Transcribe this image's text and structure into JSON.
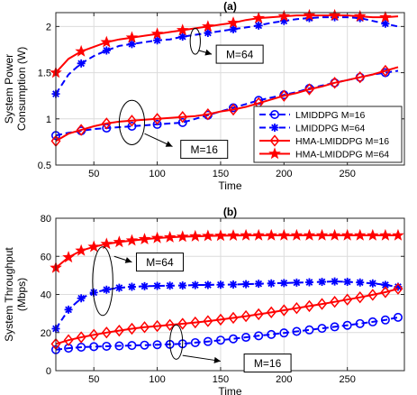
{
  "chart_data": [
    {
      "type": "line",
      "title": "(a)",
      "xlabel": "Time",
      "ylabel_lines": [
        "System Power",
        "Consumption (W)"
      ],
      "xlim": [
        20,
        295
      ],
      "ylim": [
        0.5,
        2.15
      ],
      "xticks": [
        50,
        100,
        150,
        200,
        250
      ],
      "yticks": [
        0.5,
        1,
        1.5,
        2
      ],
      "ytick_labels": [
        "0.5",
        "1",
        "1.5",
        "2"
      ],
      "grid": true,
      "legend_position": "bottom-right",
      "series": [
        {
          "name": "LMIDDPG M=16",
          "color": "#0000ff",
          "dash": true,
          "marker": "circle",
          "markerEvery": 2,
          "x": [
            20,
            30,
            40,
            50,
            60,
            70,
            80,
            90,
            100,
            110,
            120,
            130,
            140,
            150,
            160,
            170,
            180,
            190,
            200,
            210,
            220,
            230,
            240,
            250,
            260,
            270,
            280,
            290
          ],
          "y": [
            0.82,
            0.85,
            0.87,
            0.89,
            0.9,
            0.91,
            0.92,
            0.93,
            0.94,
            0.95,
            0.96,
            1.0,
            1.04,
            1.08,
            1.12,
            1.16,
            1.2,
            1.23,
            1.26,
            1.29,
            1.33,
            1.36,
            1.39,
            1.42,
            1.45,
            1.48,
            1.5,
            1.52
          ]
        },
        {
          "name": "LMIDDPG M=64",
          "color": "#0000ff",
          "dash": true,
          "marker": "asterisk",
          "markerEvery": 2,
          "x": [
            20,
            30,
            40,
            50,
            60,
            70,
            80,
            90,
            100,
            110,
            120,
            130,
            140,
            150,
            160,
            170,
            180,
            190,
            200,
            210,
            220,
            230,
            240,
            250,
            260,
            270,
            280,
            290
          ],
          "y": [
            1.27,
            1.48,
            1.6,
            1.68,
            1.74,
            1.79,
            1.81,
            1.83,
            1.85,
            1.86,
            1.89,
            1.91,
            1.93,
            1.95,
            1.97,
            1.99,
            2.01,
            2.04,
            2.06,
            2.08,
            2.09,
            2.1,
            2.1,
            2.1,
            2.09,
            2.06,
            2.03,
            2.0
          ]
        },
        {
          "name": "HMA-LMIDDPG M=16",
          "color": "#ff0000",
          "dash": false,
          "marker": "diamond",
          "markerEvery": 2,
          "x": [
            20,
            30,
            40,
            50,
            60,
            70,
            80,
            90,
            100,
            110,
            120,
            130,
            140,
            150,
            160,
            170,
            180,
            190,
            200,
            210,
            220,
            230,
            240,
            250,
            260,
            270,
            280,
            290
          ],
          "y": [
            0.76,
            0.84,
            0.88,
            0.92,
            0.95,
            0.97,
            0.98,
            0.99,
            1.0,
            1.01,
            1.02,
            1.03,
            1.05,
            1.08,
            1.1,
            1.13,
            1.17,
            1.21,
            1.25,
            1.28,
            1.32,
            1.35,
            1.39,
            1.42,
            1.45,
            1.48,
            1.52,
            1.56
          ]
        },
        {
          "name": "HMA-LMIDDPG M=64",
          "color": "#ff0000",
          "dash": false,
          "marker": "star",
          "markerEvery": 2,
          "x": [
            20,
            30,
            40,
            50,
            60,
            70,
            80,
            90,
            100,
            110,
            120,
            130,
            140,
            150,
            160,
            170,
            180,
            190,
            200,
            210,
            220,
            230,
            240,
            250,
            260,
            270,
            280,
            290
          ],
          "y": [
            1.5,
            1.65,
            1.73,
            1.78,
            1.83,
            1.86,
            1.88,
            1.9,
            1.92,
            1.94,
            1.96,
            1.98,
            2.0,
            2.02,
            2.04,
            2.07,
            2.09,
            2.1,
            2.11,
            2.12,
            2.12,
            2.12,
            2.12,
            2.12,
            2.11,
            2.1,
            2.1,
            2.11
          ]
        }
      ],
      "annotations": [
        {
          "text": "M=64",
          "ellipse": {
            "cx": 130,
            "cy": 1.84,
            "rx": 4,
            "ry": 0.14
          },
          "box_text_x": 148,
          "box_text_y": 1.7,
          "arrow_from": [
            133,
            1.74
          ],
          "arrow_to": [
            143,
            1.7
          ]
        },
        {
          "text": "M=16",
          "ellipse": {
            "cx": 80,
            "cy": 0.96,
            "rx": 10,
            "ry": 0.24
          },
          "box_text_x": 120,
          "box_text_y": 0.67,
          "arrow_from": [
            90,
            0.84
          ],
          "arrow_to": [
            112,
            0.7
          ]
        }
      ]
    },
    {
      "type": "line",
      "title": "(b)",
      "xlabel": "Time",
      "ylabel_lines": [
        "System Throughput",
        "(Mbps)"
      ],
      "xlim": [
        20,
        295
      ],
      "ylim": [
        0,
        80
      ],
      "xticks": [
        50,
        100,
        150,
        200,
        250
      ],
      "yticks": [
        0,
        20,
        40,
        60,
        80
      ],
      "ytick_labels": [
        "0",
        "20",
        "40",
        "60",
        "80"
      ],
      "grid": true,
      "series": [
        {
          "name": "LMIDDPG M=16",
          "color": "#0000ff",
          "dash": true,
          "marker": "circle",
          "markerEvery": 1,
          "x": [
            20,
            30,
            40,
            50,
            60,
            70,
            80,
            90,
            100,
            110,
            120,
            130,
            140,
            150,
            160,
            170,
            180,
            190,
            200,
            210,
            220,
            230,
            240,
            250,
            260,
            270,
            280,
            290
          ],
          "y": [
            11,
            11.8,
            12.3,
            12.6,
            12.8,
            13,
            13.2,
            13.4,
            13.6,
            13.8,
            14.1,
            14.7,
            15.3,
            16,
            16.7,
            17.5,
            18.3,
            19,
            19.8,
            20.6,
            21.4,
            22.2,
            23,
            23.8,
            24.7,
            25.6,
            26.6,
            28
          ]
        },
        {
          "name": "LMIDDPG M=64",
          "color": "#0000ff",
          "dash": true,
          "marker": "asterisk",
          "markerEvery": 1,
          "x": [
            20,
            30,
            40,
            50,
            60,
            70,
            80,
            90,
            100,
            110,
            120,
            130,
            140,
            150,
            160,
            170,
            180,
            190,
            200,
            210,
            220,
            230,
            240,
            250,
            260,
            270,
            280,
            290
          ],
          "y": [
            22,
            32,
            38,
            41,
            42.5,
            43.5,
            44,
            44.3,
            44.5,
            44.6,
            44.7,
            44.9,
            45,
            45.1,
            45.2,
            45.4,
            45.6,
            45.8,
            46,
            46.2,
            46.4,
            46.6,
            46.8,
            46.6,
            46.3,
            45.8,
            45,
            44
          ]
        },
        {
          "name": "HMA-LMIDDPG M=16",
          "color": "#ff0000",
          "dash": false,
          "marker": "diamond",
          "markerEvery": 1,
          "x": [
            20,
            30,
            40,
            50,
            60,
            70,
            80,
            90,
            100,
            110,
            120,
            130,
            140,
            150,
            160,
            170,
            180,
            190,
            200,
            210,
            220,
            230,
            240,
            250,
            260,
            270,
            280,
            290
          ],
          "y": [
            14,
            16,
            17.5,
            18.8,
            20,
            21,
            22,
            22.8,
            23.4,
            24,
            24.6,
            25.3,
            26,
            26.8,
            27.7,
            28.6,
            29.6,
            30.6,
            31.7,
            32.8,
            33.9,
            35,
            36.1,
            37.3,
            38.5,
            39.8,
            41.2,
            43
          ]
        },
        {
          "name": "HMA-LMIDDPG M=64",
          "color": "#ff0000",
          "dash": false,
          "marker": "star",
          "markerEvery": 1,
          "x": [
            20,
            30,
            40,
            50,
            60,
            70,
            80,
            90,
            100,
            110,
            120,
            130,
            140,
            150,
            160,
            170,
            180,
            190,
            200,
            210,
            220,
            230,
            240,
            250,
            260,
            270,
            280,
            290
          ],
          "y": [
            54,
            59.5,
            63,
            65,
            66.5,
            67.5,
            68.3,
            69,
            69.6,
            70,
            70.3,
            70.5,
            70.7,
            70.8,
            70.9,
            71,
            71,
            71,
            71,
            71,
            71,
            71,
            71,
            71,
            71,
            71,
            71,
            71
          ]
        }
      ],
      "annotations": [
        {
          "text": "M=64",
          "ellipse": {
            "cx": 57,
            "cy": 47,
            "rx": 8,
            "ry": 18
          },
          "box_text_x": 85,
          "box_text_y": 57,
          "arrow_from": [
            66,
            60
          ],
          "arrow_to": [
            80,
            57
          ]
        },
        {
          "text": "M=16",
          "ellipse": {
            "cx": 115,
            "cy": 15,
            "rx": 5,
            "ry": 9
          },
          "box_text_x": 170,
          "box_text_y": 4,
          "arrow_from": [
            120,
            8
          ],
          "arrow_to": [
            150,
            5
          ]
        }
      ]
    }
  ]
}
